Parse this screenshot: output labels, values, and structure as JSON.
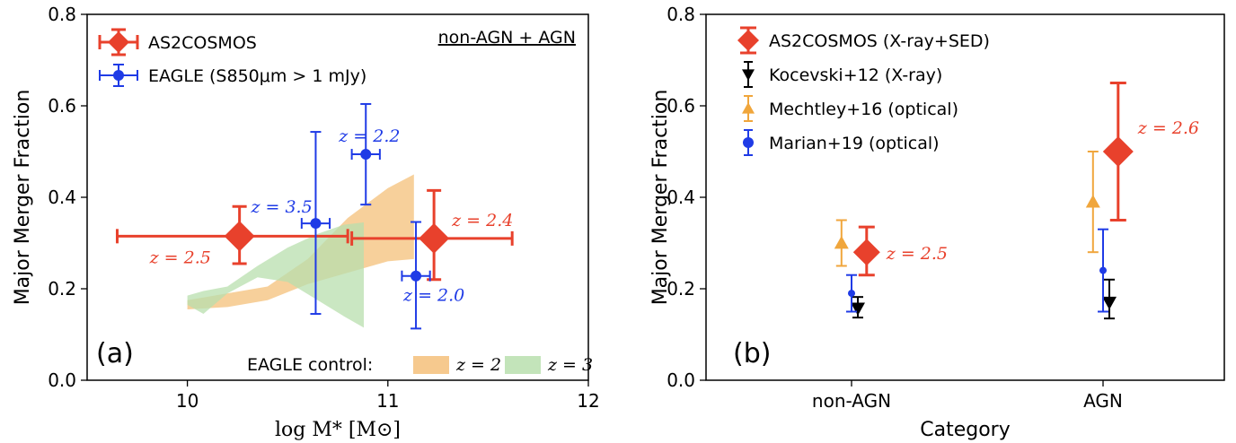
{
  "chart_data": [
    {
      "type": "scatter",
      "panel_tag": "(a)",
      "title_text": "non-AGN + AGN",
      "xlabel": "log M* [M⊙]",
      "ylabel": "Major Merger Fraction",
      "xlim": [
        9.5,
        12
      ],
      "ylim": [
        0,
        0.8
      ],
      "xticks": [
        10,
        11,
        12
      ],
      "yticks": [
        0.0,
        0.2,
        0.4,
        0.6,
        0.8
      ],
      "legend": {
        "placement": "top-left",
        "entries": [
          {
            "label": "AS2COSMOS",
            "color": "#e8412c",
            "marker": "diamond"
          },
          {
            "label": "EAGLE (S850μm > 1 mJy)",
            "color": "#1f3be6",
            "marker": "circle"
          }
        ]
      },
      "series": [
        {
          "name": "AS2COSMOS",
          "color": "#e8412c",
          "marker": "diamond",
          "points": [
            {
              "x": 10.26,
              "y": 0.315,
              "xerr": [
                0.61,
                0.54
              ],
              "yerr": [
                0.06,
                0.065
              ],
              "label": "z = 2.5"
            },
            {
              "x": 11.23,
              "y": 0.31,
              "xerr": [
                0.41,
                0.39
              ],
              "yerr": [
                0.09,
                0.105
              ],
              "label": "z = 2.4"
            }
          ]
        },
        {
          "name": "EAGLE (S850μm > 1 mJy)",
          "color": "#1f3be6",
          "marker": "circle",
          "points": [
            {
              "x": 10.64,
              "y": 0.343,
              "xerr": [
                0.07,
                0.07
              ],
              "yerr": [
                0.198,
                0.2
              ],
              "label": "z = 3.5"
            },
            {
              "x": 10.89,
              "y": 0.494,
              "xerr": [
                0.07,
                0.07
              ],
              "yerr": [
                0.11,
                0.11
              ],
              "label": "z = 2.2"
            },
            {
              "x": 11.14,
              "y": 0.228,
              "xerr": [
                0.07,
                0.07
              ],
              "yerr": [
                0.115,
                0.118
              ],
              "label": "z = 2.0"
            }
          ]
        }
      ],
      "bands": [
        {
          "name": "z = 2",
          "color": "#f4c07a",
          "x": [
            10.0,
            10.2,
            10.4,
            10.6,
            10.8,
            11.0,
            11.13
          ],
          "lower": [
            0.155,
            0.16,
            0.175,
            0.21,
            0.235,
            0.26,
            0.265
          ],
          "upper": [
            0.175,
            0.19,
            0.205,
            0.265,
            0.355,
            0.42,
            0.45
          ]
        },
        {
          "name": "z = 3",
          "color": "#b8dfae",
          "x": [
            10.0,
            10.08,
            10.2,
            10.35,
            10.5,
            10.65,
            10.78,
            10.88
          ],
          "lower": [
            0.165,
            0.145,
            0.19,
            0.225,
            0.215,
            0.175,
            0.14,
            0.115
          ],
          "upper": [
            0.185,
            0.195,
            0.205,
            0.25,
            0.29,
            0.32,
            0.34,
            0.345
          ]
        }
      ],
      "band_legend_title": "EAGLE control:",
      "band_legend_placement": "bottom-right"
    },
    {
      "type": "scatter",
      "panel_tag": "(b)",
      "xlabel": "Category",
      "ylabel": "Major Merger Fraction",
      "categories": [
        "non-AGN",
        "AGN"
      ],
      "ylim": [
        0,
        0.8
      ],
      "yticks": [
        0.0,
        0.2,
        0.4,
        0.6,
        0.8
      ],
      "legend": {
        "placement": "top-left",
        "entries": [
          {
            "label": "AS2COSMOS (X-ray+SED)",
            "color": "#e8412c",
            "marker": "diamond"
          },
          {
            "label": "Kocevski+12 (X-ray)",
            "color": "#000000",
            "marker": "triangle-down"
          },
          {
            "label": "Mechtley+16 (optical)",
            "color": "#f0a63c",
            "marker": "triangle-up"
          },
          {
            "label": "Marian+19 (optical)",
            "color": "#1f3be6",
            "marker": "circle"
          }
        ]
      },
      "series": [
        {
          "name": "AS2COSMOS (X-ray+SED)",
          "color": "#e8412c",
          "marker": "diamond",
          "offset": 0.06,
          "points": [
            {
              "category": "non-AGN",
              "y": 0.28,
              "yerr": [
                0.05,
                0.055
              ],
              "label": "z = 2.5"
            },
            {
              "category": "AGN",
              "y": 0.5,
              "yerr": [
                0.15,
                0.15
              ],
              "label": "z = 2.6"
            }
          ]
        },
        {
          "name": "Kocevski+12 (X-ray)",
          "color": "#000000",
          "marker": "triangle-down",
          "offset": 0.025,
          "points": [
            {
              "category": "non-AGN",
              "y": 0.157,
              "yerr": [
                0.02,
                0.025
              ]
            },
            {
              "category": "AGN",
              "y": 0.17,
              "yerr": [
                0.035,
                0.05
              ]
            }
          ]
        },
        {
          "name": "Mechtley+16 (optical)",
          "color": "#f0a63c",
          "marker": "triangle-up",
          "offset": -0.04,
          "points": [
            {
              "category": "non-AGN",
              "y": 0.3,
              "yerr": [
                0.05,
                0.05
              ]
            },
            {
              "category": "AGN",
              "y": 0.39,
              "yerr": [
                0.11,
                0.11
              ]
            }
          ]
        },
        {
          "name": "Marian+19 (optical)",
          "color": "#1f3be6",
          "marker": "circle",
          "offset": 0.0,
          "points": [
            {
              "category": "non-AGN",
              "y": 0.19,
              "yerr": [
                0.04,
                0.04
              ]
            },
            {
              "category": "AGN",
              "y": 0.24,
              "yerr": [
                0.09,
                0.09
              ]
            }
          ]
        }
      ]
    }
  ]
}
